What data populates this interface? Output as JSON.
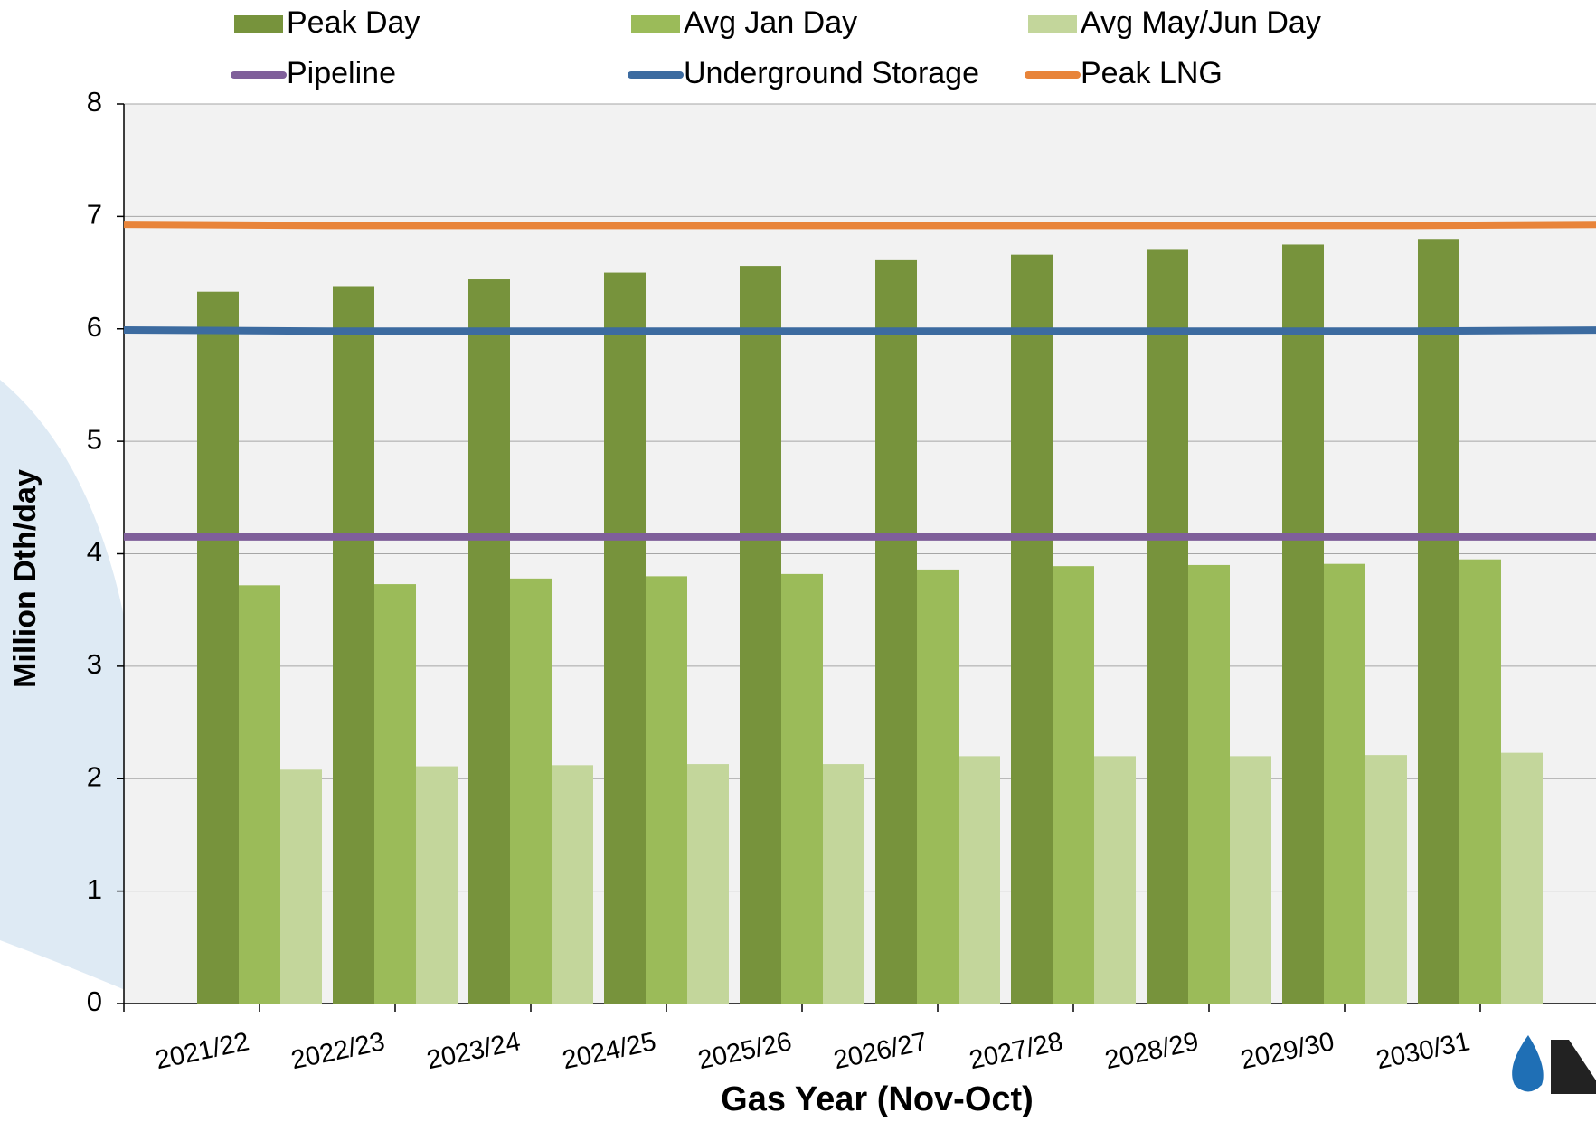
{
  "chart_data": {
    "type": "bar",
    "x_label": "Gas Year (Nov-Oct)",
    "y_label": "Million Dth/day",
    "categories": [
      "2021/22",
      "2022/23",
      "2023/24",
      "2024/25",
      "2025/26",
      "2026/27",
      "2027/28",
      "2028/29",
      "2029/30",
      "2030/31",
      null
    ],
    "series": [
      {
        "name": "Peak Day",
        "type": "bar",
        "color": "#77933c",
        "values": [
          6.33,
          6.38,
          6.44,
          6.5,
          6.56,
          6.61,
          6.66,
          6.71,
          6.75,
          6.8,
          null
        ]
      },
      {
        "name": "Avg Jan Day",
        "type": "bar",
        "color": "#9bbb59",
        "values": [
          3.72,
          3.73,
          3.78,
          3.8,
          3.82,
          3.86,
          3.89,
          3.9,
          3.91,
          3.95,
          null
        ]
      },
      {
        "name": "Avg May/Jun Day",
        "type": "bar",
        "color": "#c3d69b",
        "values": [
          2.08,
          2.11,
          2.12,
          2.13,
          2.13,
          2.2,
          2.2,
          2.2,
          2.21,
          2.23,
          null
        ]
      },
      {
        "name": "Pipeline",
        "type": "line",
        "color": "#7f5f9a",
        "values": [
          4.15,
          4.15,
          4.15,
          4.15,
          4.15,
          4.15,
          4.15,
          4.15,
          4.15,
          4.15,
          4.15
        ]
      },
      {
        "name": "Underground Storage",
        "type": "line",
        "color": "#3c6ba0",
        "values": [
          5.99,
          5.98,
          5.98,
          5.98,
          5.98,
          5.98,
          5.98,
          5.98,
          5.98,
          5.98,
          5.99
        ]
      },
      {
        "name": "Peak LNG",
        "type": "line",
        "color": "#e8843a",
        "values": [
          6.93,
          6.92,
          6.92,
          6.92,
          6.92,
          6.92,
          6.92,
          6.92,
          6.92,
          6.92,
          6.93
        ]
      }
    ],
    "ylim": [
      0,
      8
    ],
    "yticks": [
      0,
      1,
      2,
      3,
      4,
      5,
      6,
      7,
      8
    ],
    "grid": true,
    "legend": "top"
  }
}
